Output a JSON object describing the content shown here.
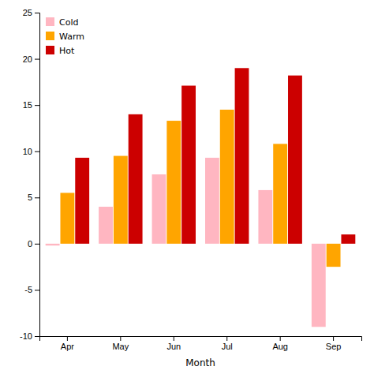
{
  "chart_data": {
    "type": "bar",
    "categories": [
      "Apr",
      "May",
      "Jun",
      "Jul",
      "Aug",
      "Sep"
    ],
    "series": [
      {
        "name": "Cold",
        "color": "#FFB6C1",
        "values": [
          -0.2,
          4.0,
          7.5,
          9.3,
          5.8,
          -9.0
        ]
      },
      {
        "name": "Warm",
        "color": "#FFA500",
        "values": [
          5.5,
          9.5,
          13.3,
          14.5,
          10.8,
          -2.5
        ]
      },
      {
        "name": "Hot",
        "color": "#CC0000",
        "values": [
          9.3,
          14.0,
          17.1,
          19.0,
          18.2,
          1.0
        ]
      }
    ],
    "xlabel": "Month",
    "ylim": [
      -10,
      25
    ],
    "yticks": [
      -10,
      -5,
      0,
      5,
      10,
      15,
      20,
      25
    ],
    "grid": false,
    "legend": "upper left"
  }
}
